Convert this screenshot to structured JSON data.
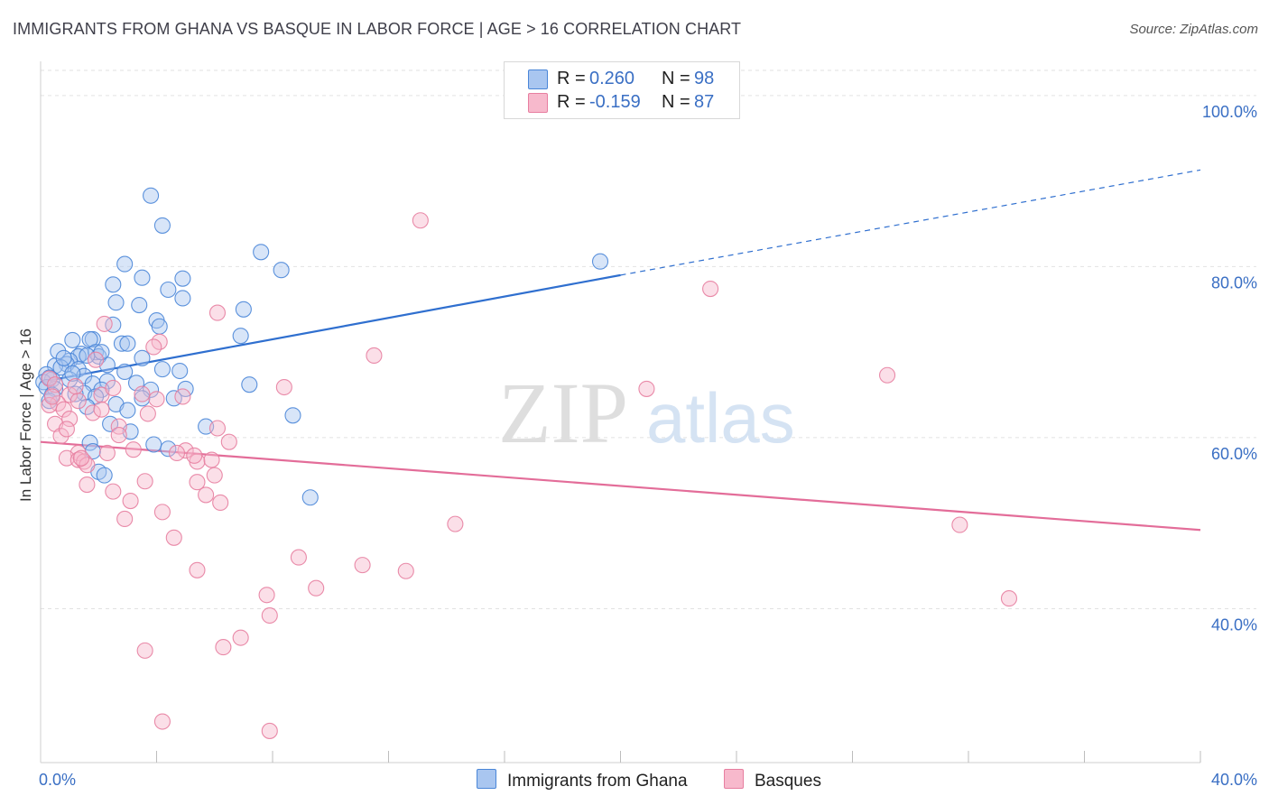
{
  "title": "IMMIGRANTS FROM GHANA VS BASQUE IN LABOR FORCE | AGE > 16 CORRELATION CHART",
  "source": "Source: ZipAtlas.com",
  "watermark": {
    "zip": "ZIP",
    "atlas": "atlas"
  },
  "colors": {
    "blue_fill": "#a9c6f0",
    "blue_stroke": "#4a86d8",
    "blue_line": "#2f6fcf",
    "pink_fill": "#f7b9cc",
    "pink_stroke": "#e77ea0",
    "pink_line": "#e36d99",
    "tick_text": "#3a6fc4",
    "grid": "#e2e2e2"
  },
  "legend": {
    "rows": [
      {
        "r_label": "R =",
        "r_value": "0.260",
        "n_label": "N =",
        "n_value": "98"
      },
      {
        "r_label": "R =",
        "r_value": "-0.159",
        "n_label": "N =",
        "n_value": "87"
      }
    ]
  },
  "bottom_legend": [
    "Immigrants from Ghana",
    "Basques"
  ],
  "chart_data": {
    "type": "scatter",
    "xlabel": "",
    "ylabel": "In Labor Force | Age > 16",
    "xlim": [
      0,
      40
    ],
    "ylim": [
      22,
      104
    ],
    "x_tick_labels": [
      {
        "value": 0,
        "label": "0.0%"
      },
      {
        "value": 40,
        "label": "40.0%"
      }
    ],
    "y_tick_labels": [
      {
        "value": 100,
        "label": "100.0%"
      },
      {
        "value": 80,
        "label": "80.0%"
      },
      {
        "value": 60,
        "label": "60.0%"
      },
      {
        "value": 40,
        "label": "40.0%"
      }
    ],
    "x_minor_ticks": [
      4,
      8,
      12,
      16,
      20,
      24,
      28,
      32,
      36,
      40
    ],
    "grid": true,
    "series": [
      {
        "name": "Immigrants from Ghana",
        "color": "#4a86d8",
        "trend": {
          "x": [
            0,
            20
          ],
          "y": [
            66.5,
            79.0
          ],
          "dashed_to": {
            "x": 40,
            "y": 91.3
          }
        },
        "points": [
          [
            3.8,
            88.3
          ],
          [
            4.2,
            84.8
          ],
          [
            7.6,
            81.7
          ],
          [
            8.3,
            79.6
          ],
          [
            2.9,
            80.3
          ],
          [
            3.5,
            78.7
          ],
          [
            4.9,
            78.6
          ],
          [
            2.5,
            77.9
          ],
          [
            4.4,
            77.3
          ],
          [
            4.9,
            76.3
          ],
          [
            3.4,
            75.5
          ],
          [
            2.6,
            75.8
          ],
          [
            7.0,
            75.0
          ],
          [
            4.0,
            73.7
          ],
          [
            4.1,
            73.0
          ],
          [
            2.5,
            73.2
          ],
          [
            1.8,
            71.5
          ],
          [
            2.8,
            71.0
          ],
          [
            3.0,
            71.0
          ],
          [
            6.9,
            71.9
          ],
          [
            1.7,
            71.5
          ],
          [
            1.1,
            71.4
          ],
          [
            0.6,
            70.1
          ],
          [
            1.4,
            69.8
          ],
          [
            1.9,
            70.0
          ],
          [
            1.3,
            69.5
          ],
          [
            2.0,
            69.5
          ],
          [
            3.5,
            69.3
          ],
          [
            1.0,
            69.0
          ],
          [
            0.9,
            68.6
          ],
          [
            0.5,
            68.4
          ],
          [
            0.7,
            68.2
          ],
          [
            2.3,
            68.5
          ],
          [
            1.3,
            68.0
          ],
          [
            0.2,
            67.4
          ],
          [
            1.5,
            67.2
          ],
          [
            2.9,
            67.7
          ],
          [
            4.2,
            68.0
          ],
          [
            4.8,
            67.8
          ],
          [
            0.4,
            66.8
          ],
          [
            0.1,
            66.5
          ],
          [
            1.0,
            66.8
          ],
          [
            1.8,
            66.3
          ],
          [
            2.3,
            66.6
          ],
          [
            3.3,
            66.4
          ],
          [
            7.2,
            66.2
          ],
          [
            0.2,
            65.9
          ],
          [
            0.5,
            65.7
          ],
          [
            1.5,
            65.2
          ],
          [
            2.1,
            65.6
          ],
          [
            3.8,
            65.6
          ],
          [
            5.0,
            65.7
          ],
          [
            1.2,
            65.1
          ],
          [
            1.9,
            64.8
          ],
          [
            3.5,
            64.6
          ],
          [
            4.6,
            64.6
          ],
          [
            0.3,
            64.3
          ],
          [
            2.6,
            63.9
          ],
          [
            1.6,
            63.6
          ],
          [
            3.0,
            63.2
          ],
          [
            8.7,
            62.6
          ],
          [
            2.4,
            61.6
          ],
          [
            5.7,
            61.3
          ],
          [
            3.1,
            60.7
          ],
          [
            1.7,
            59.4
          ],
          [
            3.9,
            59.2
          ],
          [
            4.4,
            58.7
          ],
          [
            1.8,
            58.4
          ],
          [
            2.0,
            56.0
          ],
          [
            2.2,
            55.6
          ],
          [
            9.3,
            53.0
          ],
          [
            19.3,
            80.6
          ],
          [
            0.3,
            67.0
          ],
          [
            0.8,
            69.3
          ],
          [
            1.6,
            69.6
          ],
          [
            2.1,
            70.0
          ],
          [
            0.4,
            65.0
          ],
          [
            1.1,
            67.5
          ]
        ]
      },
      {
        "name": "Basques",
        "color": "#e77ea0",
        "trend": {
          "x": [
            0,
            40
          ],
          "y": [
            59.5,
            49.2
          ]
        },
        "points": [
          [
            13.1,
            85.4
          ],
          [
            23.1,
            77.4
          ],
          [
            6.1,
            74.6
          ],
          [
            2.2,
            73.3
          ],
          [
            4.1,
            71.2
          ],
          [
            3.9,
            70.6
          ],
          [
            11.5,
            69.6
          ],
          [
            1.9,
            69.1
          ],
          [
            29.2,
            67.3
          ],
          [
            0.3,
            66.9
          ],
          [
            0.5,
            66.2
          ],
          [
            8.4,
            65.9
          ],
          [
            20.9,
            65.7
          ],
          [
            3.5,
            65.1
          ],
          [
            1.0,
            65.0
          ],
          [
            2.1,
            65.0
          ],
          [
            4.9,
            64.8
          ],
          [
            4.0,
            64.5
          ],
          [
            1.3,
            64.3
          ],
          [
            0.6,
            64.0
          ],
          [
            0.3,
            63.8
          ],
          [
            0.8,
            63.3
          ],
          [
            1.8,
            62.9
          ],
          [
            2.1,
            63.3
          ],
          [
            1.0,
            62.2
          ],
          [
            0.5,
            61.6
          ],
          [
            2.7,
            61.3
          ],
          [
            6.1,
            61.1
          ],
          [
            2.7,
            60.3
          ],
          [
            0.7,
            60.2
          ],
          [
            6.5,
            59.5
          ],
          [
            3.2,
            58.6
          ],
          [
            5.0,
            58.5
          ],
          [
            4.7,
            58.2
          ],
          [
            1.3,
            58.2
          ],
          [
            2.3,
            58.2
          ],
          [
            0.9,
            57.6
          ],
          [
            1.3,
            57.4
          ],
          [
            1.5,
            57.2
          ],
          [
            5.4,
            57.2
          ],
          [
            5.9,
            57.4
          ],
          [
            5.3,
            57.9
          ],
          [
            1.6,
            56.8
          ],
          [
            3.6,
            54.9
          ],
          [
            5.4,
            54.8
          ],
          [
            6.0,
            55.6
          ],
          [
            1.6,
            54.5
          ],
          [
            2.5,
            53.7
          ],
          [
            5.7,
            53.3
          ],
          [
            6.2,
            52.4
          ],
          [
            3.1,
            52.6
          ],
          [
            4.2,
            51.3
          ],
          [
            2.9,
            50.5
          ],
          [
            14.3,
            49.9
          ],
          [
            31.7,
            49.8
          ],
          [
            4.6,
            48.3
          ],
          [
            8.9,
            46.0
          ],
          [
            11.1,
            45.1
          ],
          [
            12.6,
            44.4
          ],
          [
            5.4,
            44.5
          ],
          [
            9.5,
            42.4
          ],
          [
            7.8,
            41.6
          ],
          [
            33.4,
            41.2
          ],
          [
            7.9,
            39.2
          ],
          [
            6.9,
            36.6
          ],
          [
            6.3,
            35.5
          ],
          [
            3.6,
            35.1
          ],
          [
            4.2,
            26.8
          ],
          [
            7.9,
            25.7
          ],
          [
            1.4,
            57.6
          ],
          [
            0.4,
            64.8
          ],
          [
            1.2,
            66.0
          ],
          [
            2.5,
            65.8
          ],
          [
            3.7,
            62.8
          ],
          [
            0.9,
            61.0
          ]
        ]
      }
    ]
  }
}
